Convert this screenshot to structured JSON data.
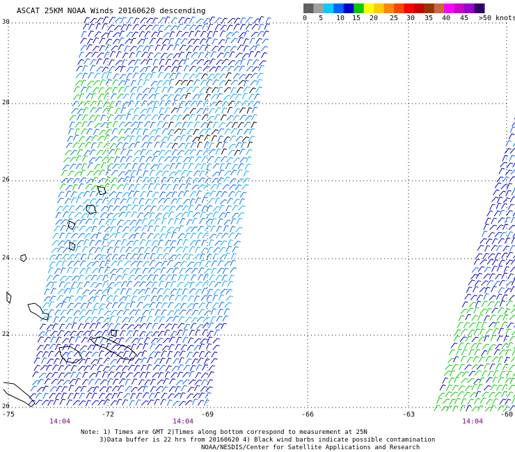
{
  "title": "ASCAT 25KM NOAA Winds 20160620 descending",
  "scale": {
    "colors": [
      "#606060",
      "#a0a0a0",
      "#00ccff",
      "#0066ff",
      "#0000cc",
      "#00cc00",
      "#ffff00",
      "#ffcc00",
      "#ff8800",
      "#ff4400",
      "#ff0000",
      "#cc0000",
      "#993300",
      "#cc6644",
      "#ff00ff",
      "#cc00cc",
      "#9900cc",
      "#330066"
    ],
    "labels": [
      "0",
      "5",
      "10",
      "15",
      "20",
      "25",
      "30",
      "35",
      "40",
      "45",
      ">50 knots"
    ]
  },
  "lat_labels": [
    "30",
    "28",
    "26",
    "24",
    "22",
    "20"
  ],
  "lon_labels": [
    "-75",
    "-72",
    "-69",
    "-66",
    "-63",
    "-60"
  ],
  "times": [
    "14:04",
    "14:04",
    "14:04"
  ],
  "notes": [
    "Note: 1) Times are GMT 2)Times along bottom correspond to measurement at 25N",
    "3)Data buffer is 22 hrs from 20160620 4) Black wind barbs indicate possible contamination",
    "NOAA/NESDIS/Center for Satellite Applications and Research"
  ]
}
